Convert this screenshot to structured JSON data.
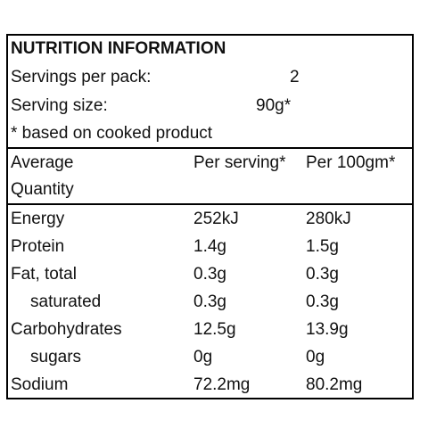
{
  "header": {
    "title": "NUTRITION INFORMATION",
    "servings_label": "Servings per pack:",
    "servings_value": "2",
    "serving_size_label": "Serving size:",
    "serving_size_value": "90g*",
    "note": "* based on cooked product"
  },
  "table": {
    "columns": [
      [
        "Average",
        "Quantity"
      ],
      "Per serving*",
      "Per 100gm*"
    ],
    "rows": [
      [
        "Energy",
        "252kJ",
        "280kJ"
      ],
      [
        "Protein",
        "1.4g",
        "1.5g"
      ],
      [
        "Fat, total",
        "0.3g",
        "0.3g"
      ],
      [
        "saturated",
        "0.3g",
        "0.3g"
      ],
      [
        "Carbohydrates",
        "12.5g",
        "13.9g"
      ],
      [
        "sugars",
        "0g",
        "0g"
      ],
      [
        "Sodium",
        "72.2mg",
        "80.2mg"
      ]
    ]
  }
}
